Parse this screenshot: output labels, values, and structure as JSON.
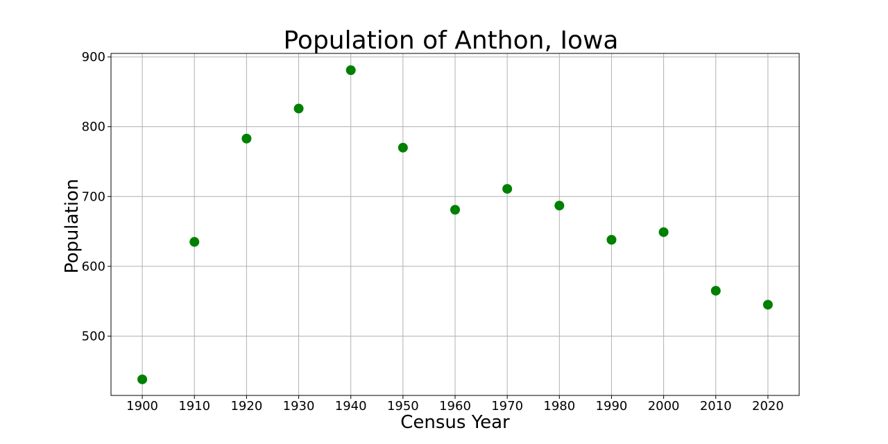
{
  "chart_data": {
    "type": "scatter",
    "title": "Population of Anthon, Iowa",
    "xlabel": "Census Year",
    "ylabel": "Population",
    "x": [
      1900,
      1910,
      1920,
      1930,
      1940,
      1950,
      1960,
      1970,
      1980,
      1990,
      2000,
      2010,
      2020
    ],
    "y": [
      438,
      635,
      783,
      826,
      881,
      770,
      681,
      711,
      687,
      638,
      649,
      565,
      545
    ],
    "xlim": [
      1894,
      2026
    ],
    "ylim": [
      415,
      905
    ],
    "xticks": [
      1900,
      1910,
      1920,
      1930,
      1940,
      1950,
      1960,
      1970,
      1980,
      1990,
      2000,
      2010,
      2020
    ],
    "yticks": [
      500,
      600,
      700,
      800,
      900
    ],
    "grid": true,
    "marker_color": "#008000"
  }
}
